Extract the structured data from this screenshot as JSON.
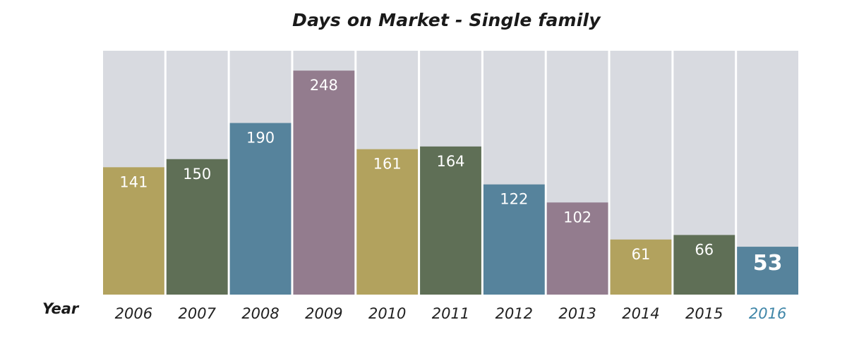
{
  "chart_data": {
    "type": "bar",
    "title": "Days on Market - Single family",
    "xlabel": "Year",
    "ylabel": "",
    "categories": [
      "2006",
      "2007",
      "2008",
      "2009",
      "2010",
      "2011",
      "2012",
      "2013",
      "2014",
      "2015",
      "2016"
    ],
    "values": [
      141,
      150,
      190,
      248,
      161,
      164,
      122,
      102,
      61,
      66,
      53
    ],
    "ylim": [
      0,
      270
    ],
    "grid": false,
    "legend": "none",
    "highlight_category": "2016",
    "colors": {
      "background_column": "#d8dae0",
      "bars": [
        "#b2a25e",
        "#5f6f56",
        "#56839c",
        "#937c8e",
        "#b2a25e",
        "#5f6f56",
        "#56839c",
        "#937c8e",
        "#b2a25e",
        "#5f6f56",
        "#56839c"
      ],
      "value_label": "#ffffff",
      "category_label": "#222222",
      "highlight_label": "#3f86a8"
    }
  }
}
